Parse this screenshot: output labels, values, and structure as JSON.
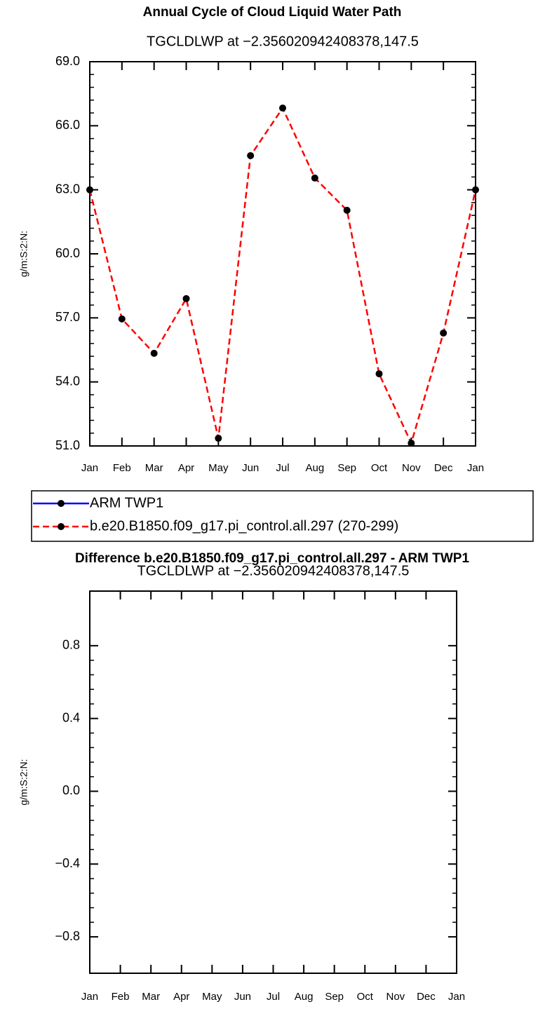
{
  "chart_data": [
    {
      "type": "line",
      "title": "Annual Cycle of Cloud Liquid Water Path",
      "subtitle": "TGCLDLWP at −2.356020942408378,147.5",
      "ylabel": "g/m:S:2:N:",
      "categories": [
        "Jan",
        "Feb",
        "Mar",
        "Apr",
        "May",
        "Jun",
        "Jul",
        "Aug",
        "Sep",
        "Oct",
        "Nov",
        "Dec",
        "Jan"
      ],
      "series": [
        {
          "name": "ARM TWP1",
          "color": "#0000ff",
          "dash": false,
          "marker_color": "#000000",
          "values": [
            null,
            null,
            null,
            null,
            null,
            null,
            null,
            null,
            null,
            null,
            null,
            null,
            null
          ]
        },
        {
          "name": "b.e20.B1850.f09_g17.pi_control.all.297 (270-299)",
          "color": "#ff0000",
          "dash": true,
          "marker_color": "#000000",
          "values": [
            63.0,
            56.95,
            55.34,
            57.9,
            51.36,
            64.6,
            66.83,
            63.55,
            62.04,
            54.38,
            51.13,
            56.29,
            63.0
          ]
        }
      ],
      "ylim": [
        51,
        69
      ],
      "yticks": [
        {
          "value": 51,
          "label": "51.0"
        },
        {
          "value": 54,
          "label": "54.0"
        },
        {
          "value": 57,
          "label": "57.0"
        },
        {
          "value": 60,
          "label": "60.0"
        },
        {
          "value": 63,
          "label": "63.0"
        },
        {
          "value": 66,
          "label": "66.0"
        },
        {
          "value": 69,
          "label": "69.0"
        }
      ],
      "legend": "bottom"
    },
    {
      "type": "line",
      "title": "Difference b.e20.B1850.f09_g17.pi_control.all.297 - ARM TWP1",
      "subtitle": "TGCLDLWP at −2.356020942408378,147.5",
      "ylabel": "g/m:S:2:N:",
      "categories": [
        "Jan",
        "Feb",
        "Mar",
        "Apr",
        "May",
        "Jun",
        "Jul",
        "Aug",
        "Sep",
        "Oct",
        "Nov",
        "Dec",
        "Jan"
      ],
      "values": [
        null,
        null,
        null,
        null,
        null,
        null,
        null,
        null,
        null,
        null,
        null,
        null,
        null
      ],
      "ylim": [
        -1.0,
        1.1
      ],
      "yticks": [
        {
          "value": -0.8,
          "label": "−0.8"
        },
        {
          "value": -0.4,
          "label": "−0.4"
        },
        {
          "value": 0,
          "label": "0.0"
        },
        0.4,
        0.8
      ]
    }
  ]
}
